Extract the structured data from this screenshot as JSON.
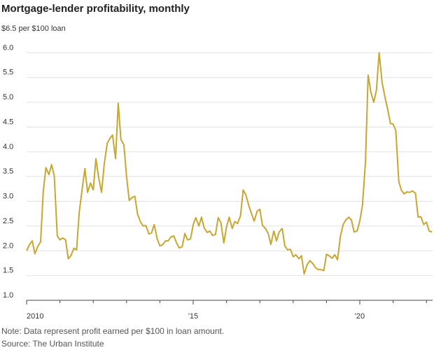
{
  "title": "Mortgage-lender profitability, monthly",
  "note": "Note: Data represent profit earned per $100 in loan amount.",
  "source": "Source: The Urban Institute",
  "chart_data": {
    "type": "line",
    "title": "Mortgage-lender profitability, monthly",
    "ylabel": "$6.5 per $100 loan",
    "y_top_label": "$6.5 per $100 loan",
    "xlim": [
      2010,
      2022.3
    ],
    "ylim": [
      1.0,
      6.5
    ],
    "yticks": [
      1.0,
      1.5,
      2.0,
      2.5,
      3.0,
      3.5,
      4.0,
      4.5,
      5.0,
      5.5,
      6.0
    ],
    "ytick_labels": [
      "1.0",
      "1.5",
      "2.0",
      "2.5",
      "3.0",
      "3.5",
      "4.0",
      "4.5",
      "5.0",
      "5.5",
      "6.0"
    ],
    "xticks": [
      2010,
      2015,
      2020
    ],
    "xtick_labels": [
      "2010",
      "'15",
      "'20"
    ],
    "grid": true,
    "color": "#c6a732",
    "series": [
      {
        "x": [
          2010.0,
          2010.08,
          2010.17,
          2010.25,
          2010.33,
          2010.42,
          2010.5,
          2010.58,
          2010.67,
          2010.75,
          2010.83,
          2010.92,
          2011.0,
          2011.08,
          2011.17,
          2011.25,
          2011.33,
          2011.42,
          2011.5,
          2011.58,
          2011.67,
          2011.75,
          2011.83,
          2011.92,
          2012.0,
          2012.08,
          2012.17,
          2012.25,
          2012.33,
          2012.42,
          2012.5,
          2012.58,
          2012.67,
          2012.75,
          2012.83,
          2012.92,
          2013.0,
          2013.08,
          2013.17,
          2013.25,
          2013.33,
          2013.42,
          2013.5,
          2013.58,
          2013.67,
          2013.75,
          2013.83,
          2013.92,
          2014.0,
          2014.08,
          2014.17,
          2014.25,
          2014.33,
          2014.42,
          2014.5,
          2014.58,
          2014.67,
          2014.75,
          2014.83,
          2014.92,
          2015.0,
          2015.08,
          2015.17,
          2015.25,
          2015.33,
          2015.42,
          2015.5,
          2015.58,
          2015.67,
          2015.75,
          2015.83,
          2015.92,
          2016.0,
          2016.08,
          2016.17,
          2016.25,
          2016.33,
          2016.42,
          2016.5,
          2016.58,
          2016.67,
          2016.75,
          2016.83,
          2016.92,
          2017.0,
          2017.08,
          2017.17,
          2017.25,
          2017.33,
          2017.42,
          2017.5,
          2017.58,
          2017.67,
          2017.75,
          2017.83,
          2017.92,
          2018.0,
          2018.08,
          2018.17,
          2018.25,
          2018.33,
          2018.42,
          2018.5,
          2018.58,
          2018.67,
          2018.75,
          2018.83,
          2018.92,
          2019.0,
          2019.08,
          2019.17,
          2019.25,
          2019.33,
          2019.42,
          2019.5,
          2019.58,
          2019.67,
          2019.75,
          2019.83,
          2019.92,
          2020.0,
          2020.08,
          2020.17,
          2020.25,
          2020.33,
          2020.42,
          2020.5,
          2020.58,
          2020.67,
          2020.75,
          2020.83,
          2020.92,
          2021.0,
          2021.08,
          2021.17,
          2021.25,
          2021.33,
          2021.42,
          2021.5,
          2021.58,
          2021.67,
          2021.75,
          2021.83,
          2021.92,
          2022.0,
          2022.08,
          2022.17
        ],
        "y": [
          2.0,
          2.12,
          2.2,
          1.94,
          2.08,
          2.18,
          3.2,
          3.68,
          3.54,
          3.74,
          3.52,
          2.3,
          2.22,
          2.26,
          2.22,
          1.84,
          1.9,
          2.05,
          2.02,
          2.78,
          3.26,
          3.66,
          3.18,
          3.37,
          3.23,
          3.86,
          3.45,
          3.18,
          3.75,
          4.17,
          4.27,
          4.34,
          3.86,
          4.98,
          4.25,
          4.14,
          3.5,
          3.02,
          3.08,
          3.1,
          2.74,
          2.58,
          2.5,
          2.51,
          2.34,
          2.36,
          2.53,
          2.24,
          2.1,
          2.12,
          2.2,
          2.2,
          2.28,
          2.3,
          2.16,
          2.06,
          2.08,
          2.35,
          2.22,
          2.24,
          2.53,
          2.67,
          2.5,
          2.68,
          2.46,
          2.37,
          2.4,
          2.31,
          2.33,
          2.67,
          2.57,
          2.16,
          2.48,
          2.68,
          2.45,
          2.59,
          2.55,
          2.71,
          3.23,
          3.13,
          2.91,
          2.75,
          2.6,
          2.8,
          2.84,
          2.51,
          2.45,
          2.35,
          2.13,
          2.4,
          2.2,
          2.38,
          2.45,
          2.1,
          2.02,
          2.03,
          1.88,
          1.92,
          1.84,
          1.9,
          1.53,
          1.72,
          1.8,
          1.75,
          1.66,
          1.62,
          1.62,
          1.6,
          1.93,
          1.9,
          1.85,
          1.92,
          1.82,
          2.3,
          2.53,
          2.62,
          2.68,
          2.62,
          2.38,
          2.4,
          2.6,
          2.92,
          3.8,
          5.55,
          5.21,
          5.0,
          5.25,
          6.0,
          5.4,
          5.12,
          4.88,
          4.57,
          4.56,
          4.43,
          3.4,
          3.22,
          3.15,
          3.19,
          3.18,
          3.21,
          3.16,
          2.68,
          2.69,
          2.53,
          2.58,
          2.4,
          2.38
        ]
      }
    ]
  }
}
